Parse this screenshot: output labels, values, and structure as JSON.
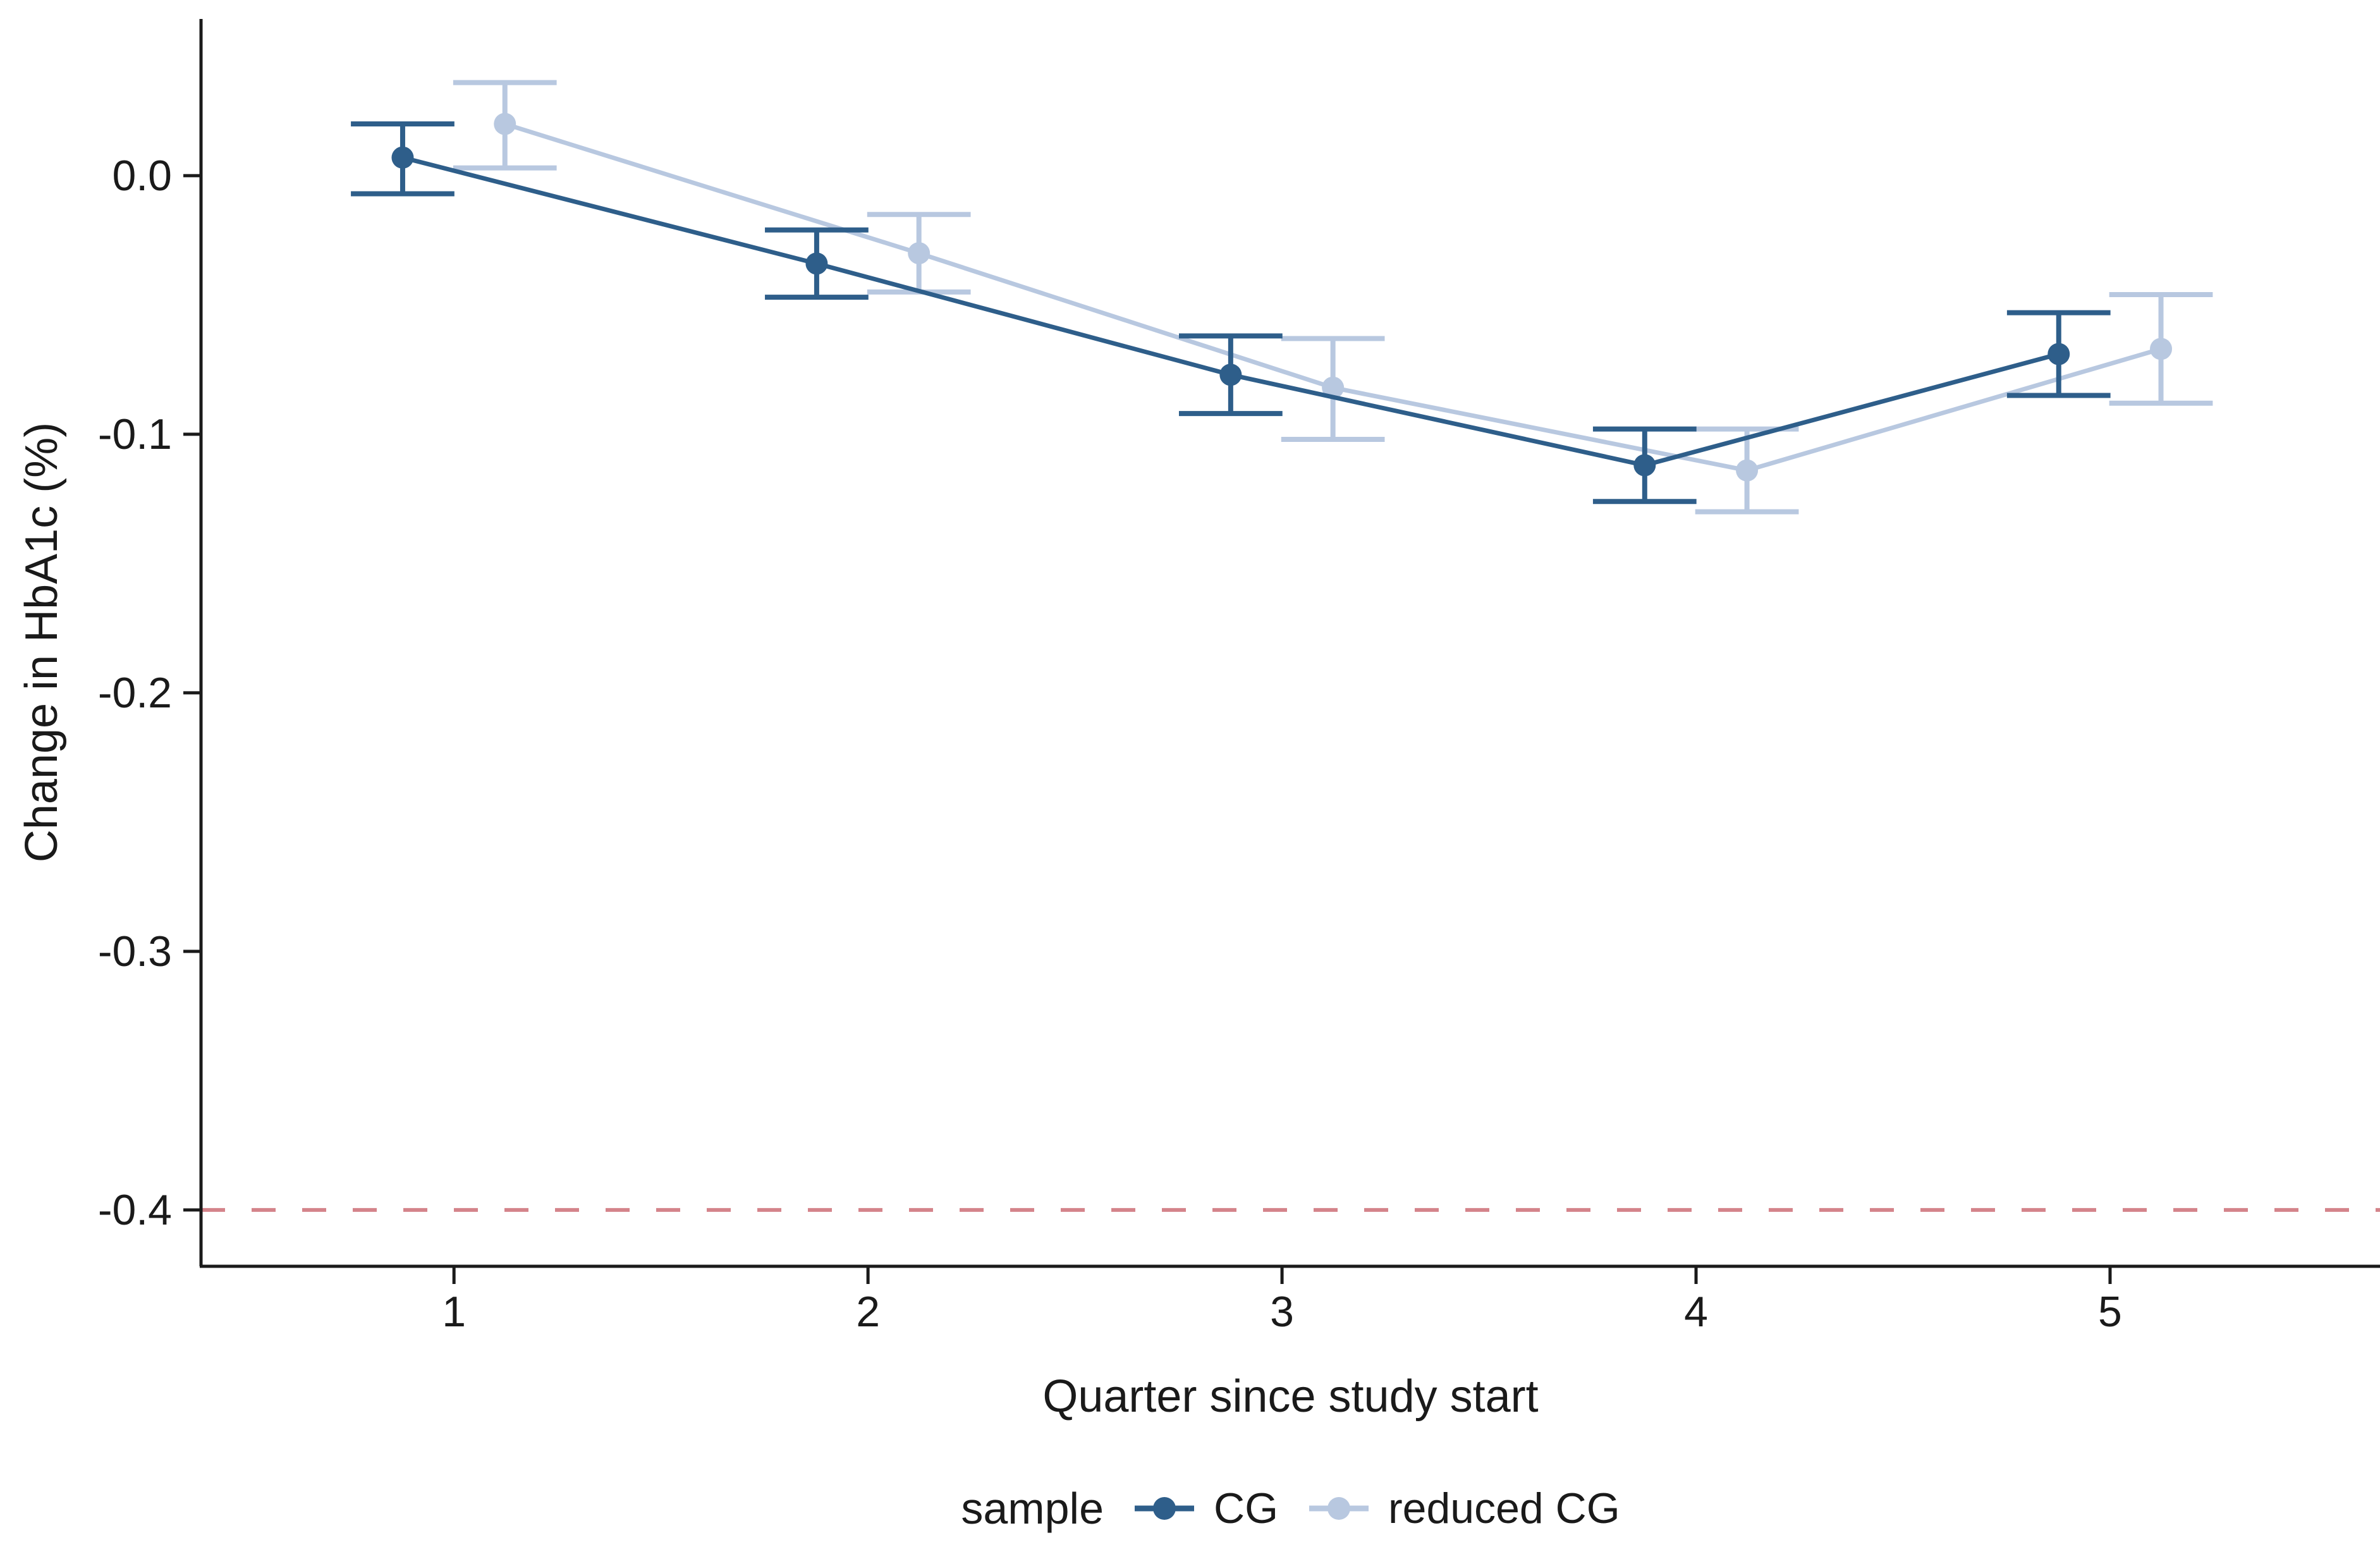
{
  "figure": {
    "background": "#ffffff",
    "text_color": "#1a1a1a",
    "axis_color": "#1a1a1a"
  },
  "chart_data": {
    "type": "line",
    "title": "",
    "xlabel": "Quarter since study start",
    "ylabel": "Change in HbA1c (%)",
    "x_tick_values": [
      1,
      2,
      3,
      4,
      5
    ],
    "x_tick_labels": [
      "1",
      "2",
      "3",
      "4",
      "5"
    ],
    "y_tick_values": [
      0.0,
      -0.1,
      -0.2,
      -0.3,
      -0.4
    ],
    "y_tick_labels": [
      "0.0",
      "-0.1",
      "-0.2",
      "-0.3",
      "-0.4"
    ],
    "xlim": [
      0.389,
      5.652
    ],
    "ylim": [
      -0.4218,
      0.0606
    ],
    "grid": false,
    "legend": {
      "title": "sample",
      "position": "bottom"
    },
    "reference_line": {
      "y": -0.4,
      "style": "dashed",
      "color": "#d4838a"
    },
    "error_bar_cap_half_width_units": 0.125,
    "series": [
      {
        "name": "CG",
        "color": "#2e5e8a",
        "x_offset": -0.124,
        "x": [
          1,
          2,
          3,
          4,
          5
        ],
        "y": [
          0.007,
          -0.034,
          -0.077,
          -0.112,
          -0.069
        ],
        "ci_low": [
          -0.007,
          -0.047,
          -0.092,
          -0.126,
          -0.085
        ],
        "ci_high": [
          0.02,
          -0.021,
          -0.062,
          -0.098,
          -0.053
        ]
      },
      {
        "name": "reduced CG",
        "color": "#b8c8e0",
        "x_offset": 0.123,
        "x": [
          1,
          2,
          3,
          4,
          5
        ],
        "y": [
          0.02,
          -0.03,
          -0.082,
          -0.114,
          -0.067
        ],
        "ci_low": [
          0.003,
          -0.045,
          -0.102,
          -0.13,
          -0.088
        ],
        "ci_high": [
          0.036,
          -0.015,
          -0.063,
          -0.098,
          -0.046
        ]
      }
    ]
  }
}
